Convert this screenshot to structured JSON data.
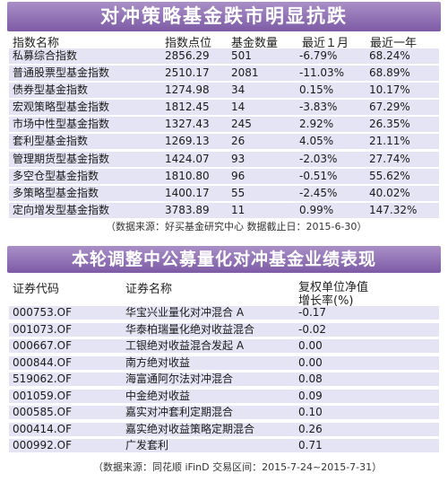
{
  "table1": {
    "title": "对冲策略基金跌市明显抗跌",
    "headers": [
      "指数名称",
      "指数点位",
      "基金数量",
      "最近１月",
      "最近一年"
    ],
    "rows": [
      [
        "私募综合指数",
        "2856.29",
        "501",
        "-6.79%",
        "68.24%"
      ],
      [
        "普通股票型基金指数",
        "2510.17",
        "2081",
        "-11.03%",
        "68.89%"
      ],
      [
        "债券型基金指数",
        "1274.98",
        "34",
        "0.15%",
        "10.17%"
      ],
      [
        "宏观策略型基金指数",
        "1812.45",
        "14",
        "-3.83%",
        "67.29%"
      ],
      [
        "市场中性型基金指数",
        "1327.43",
        "245",
        "2.92%",
        "26.35%"
      ],
      [
        "套利型基金指数",
        "1269.13",
        "26",
        "4.05%",
        "21.11%"
      ],
      [
        "管理期货型基金指数",
        "1424.07",
        "93",
        "-2.03%",
        "27.74%"
      ],
      [
        "多空仓型基金指数",
        "1810.80",
        "96",
        "-0.51%",
        "55.62%"
      ],
      [
        "多策略型基金指数",
        "1400.17",
        "55",
        "-2.45%",
        "40.02%"
      ],
      [
        "定向增发型基金指数",
        "3783.89",
        "11",
        "0.99%",
        "147.32%"
      ]
    ],
    "source": "（数据来源：好买基金研究中心  数据截止日：2015-6-30）"
  },
  "table2": {
    "title": "本轮调整中公募量化对冲基金业绩表现",
    "headers": {
      "code": "证券代码",
      "name": "证券名称",
      "growth_line1": "复权单位净值",
      "growth_line2": "增长率(%)"
    },
    "rows": [
      [
        "000753.OF",
        "华宝兴业量化对冲混合 A",
        "-0.17"
      ],
      [
        "001073.OF",
        "华泰柏瑞量化绝对收益混合",
        "-0.02"
      ],
      [
        "000667.OF",
        "工银绝对收益混合发起 A",
        "0.00"
      ],
      [
        "000844.OF",
        "南方绝对收益",
        "0.00"
      ],
      [
        "519062.OF",
        "海富通阿尔法对冲混合",
        "0.08"
      ],
      [
        "001059.OF",
        "中金绝对收益",
        "0.09"
      ],
      [
        "000585.OF",
        "嘉实对冲套利定期混合",
        "0.10"
      ],
      [
        "000414.OF",
        "嘉实绝对收益策略定期混合",
        "0.26"
      ],
      [
        "000992.OF",
        "广发套利",
        "0.71"
      ]
    ],
    "source": "（数据来源：同花顺 iFinD  交易区间：2015-7-24~2015-7-31）"
  }
}
